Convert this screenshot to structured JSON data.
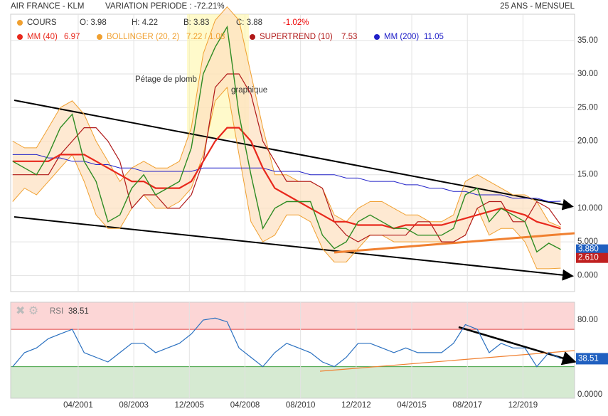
{
  "header": {
    "title": "AIR FRANCE - KLM",
    "variation": "VARIATION PERIODE : -72.21%",
    "period": "25 ANS - MENSUEL",
    "quote": [
      "O: 3.98",
      "H: 4.22",
      "B: 3.83",
      "C: 3.88"
    ],
    "change": "-1.02%"
  },
  "annotations": [
    "Pétage de plomb",
    "graphique"
  ],
  "chart_data": [
    {
      "type": "line",
      "xlim": [
        "06/1998",
        "02/2022"
      ],
      "ylim": [
        -2.4,
        38.9
      ],
      "grid": true,
      "xticks": [
        "04/2001",
        "08/2003",
        "12/2005",
        "04/2008",
        "08/2010",
        "12/2012",
        "04/2015",
        "08/2017",
        "12/2019"
      ],
      "yticks": [
        {
          "value": 0,
          "label": "0.000"
        },
        {
          "value": 5,
          "label": "5.000"
        },
        {
          "value": 10,
          "label": "10.000"
        },
        {
          "value": 15,
          "label": "15.00"
        },
        {
          "value": 20,
          "label": "20.00"
        },
        {
          "value": 25,
          "label": "25.00"
        },
        {
          "value": 30,
          "label": "30.00"
        },
        {
          "value": 35,
          "label": "35.00"
        }
      ],
      "x": [
        "07/1998",
        "01/1999",
        "07/1999",
        "01/2000",
        "07/2000",
        "01/2001",
        "07/2001",
        "01/2002",
        "07/2002",
        "01/2003",
        "07/2003",
        "01/2004",
        "07/2004",
        "01/2005",
        "07/2005",
        "01/2006",
        "07/2006",
        "01/2007",
        "07/2007",
        "01/2008",
        "07/2008",
        "01/2009",
        "07/2009",
        "01/2010",
        "07/2010",
        "01/2011",
        "07/2011",
        "01/2012",
        "07/2012",
        "01/2013",
        "07/2013",
        "01/2014",
        "07/2014",
        "01/2015",
        "07/2015",
        "01/2016",
        "07/2016",
        "01/2017",
        "07/2017",
        "01/2018",
        "07/2018",
        "01/2019",
        "07/2019",
        "01/2020",
        "07/2020",
        "01/2021",
        "07/2021"
      ],
      "series": [
        {
          "name": "COURS",
          "color": "#2e8b22",
          "values": [
            17,
            16,
            15,
            18,
            22,
            24,
            17,
            14,
            8,
            9,
            13,
            15,
            12,
            13,
            14,
            19,
            30,
            34,
            37,
            24,
            15,
            7,
            10,
            11,
            11,
            11,
            6,
            4,
            5,
            8,
            9,
            8,
            7,
            7,
            6,
            6,
            6,
            7,
            12,
            13,
            8,
            10,
            9,
            8,
            3.5,
            4.8,
            3.88
          ]
        },
        {
          "name": "BOLLINGER (20, 2)",
          "color": "#f0a030",
          "legend_value": "7.22 / 1.08",
          "values": [
            20,
            19,
            19,
            22,
            25,
            26,
            24,
            20,
            17,
            14,
            16,
            17,
            16,
            16,
            17,
            22,
            33,
            38,
            40,
            38,
            30,
            22,
            15,
            15,
            14,
            14,
            13,
            9,
            8,
            10,
            11,
            11,
            10,
            9,
            9,
            8,
            8,
            9,
            14,
            15,
            14,
            13,
            12,
            12,
            11,
            8,
            7.22
          ],
          "lower": [
            11,
            13,
            12,
            14,
            16,
            18,
            14,
            9,
            7,
            7,
            10,
            12,
            10,
            10,
            11,
            13,
            18,
            26,
            28,
            18,
            8,
            5,
            6,
            9,
            9,
            8,
            4,
            2,
            2,
            4,
            6,
            6,
            5,
            5,
            5,
            5,
            5,
            5,
            6,
            10,
            6,
            7,
            7,
            5,
            1,
            1,
            1.08
          ]
        },
        {
          "name": "SUPERTREND (10)",
          "color": "#b01818",
          "legend_value": "7.53",
          "values": [
            15,
            15,
            15,
            15,
            18,
            20,
            22,
            22,
            20,
            17,
            10,
            12,
            12,
            10,
            10,
            12,
            17,
            28,
            30,
            30,
            27,
            20,
            17,
            14,
            14,
            14,
            13,
            8,
            6,
            5,
            6,
            6,
            6,
            6,
            8,
            8,
            5,
            5,
            6,
            10,
            11,
            11,
            8,
            8,
            11,
            10,
            7.53
          ]
        },
        {
          "name": "MM (200)",
          "color": "#2020c8",
          "legend_value": "11.05",
          "values": [
            18,
            18,
            18,
            17.5,
            17.5,
            17,
            17,
            16.5,
            16.5,
            16,
            16,
            15.5,
            15.5,
            15.5,
            15.5,
            15.5,
            16,
            16,
            16,
            16,
            16,
            16,
            15.5,
            15.5,
            15.5,
            15,
            15,
            15,
            14.5,
            14.5,
            14,
            14,
            14,
            13.5,
            13.5,
            13,
            13,
            12.5,
            12.5,
            12,
            12,
            12,
            11.5,
            11.5,
            11.5,
            11,
            11.05
          ]
        },
        {
          "name": "MM (40)",
          "color": "#e8281c",
          "legend_value": "6.97",
          "values": [
            17,
            17,
            17,
            17,
            18,
            18,
            18,
            17,
            16,
            15,
            14,
            14,
            13,
            13,
            13,
            14,
            17,
            20,
            22,
            22,
            20,
            16,
            13,
            12,
            11,
            10,
            9,
            8,
            8,
            7.5,
            7.5,
            7.5,
            7,
            7.5,
            7.5,
            7.5,
            7.5,
            8,
            8.5,
            9,
            9.5,
            10,
            9.5,
            9,
            8,
            7.5,
            6.97
          ]
        }
      ],
      "price_markers": [
        {
          "value": 3.88,
          "label": "3.880",
          "color": "#2060c0"
        },
        {
          "value": 2.61,
          "label": "2.610",
          "color": "#c02020"
        }
      ]
    },
    {
      "type": "rsi",
      "name": "RSI",
      "legend_value": "38.51",
      "color": "#2a70c0",
      "ylim": [
        -3.8,
        99
      ],
      "overbought": 70,
      "oversold": 30,
      "yticks": [
        {
          "value": 0,
          "label": "0.0000"
        },
        {
          "value": 80,
          "label": "80.00"
        }
      ],
      "values": [
        30,
        45,
        50,
        60,
        65,
        70,
        45,
        40,
        35,
        45,
        55,
        55,
        45,
        50,
        55,
        65,
        80,
        82,
        78,
        50,
        40,
        30,
        45,
        55,
        50,
        45,
        35,
        30,
        40,
        55,
        55,
        50,
        45,
        50,
        45,
        45,
        45,
        55,
        75,
        70,
        45,
        55,
        50,
        50,
        30,
        45,
        38.51
      ],
      "marker": {
        "value": 38.51,
        "label": "38.51"
      }
    }
  ]
}
